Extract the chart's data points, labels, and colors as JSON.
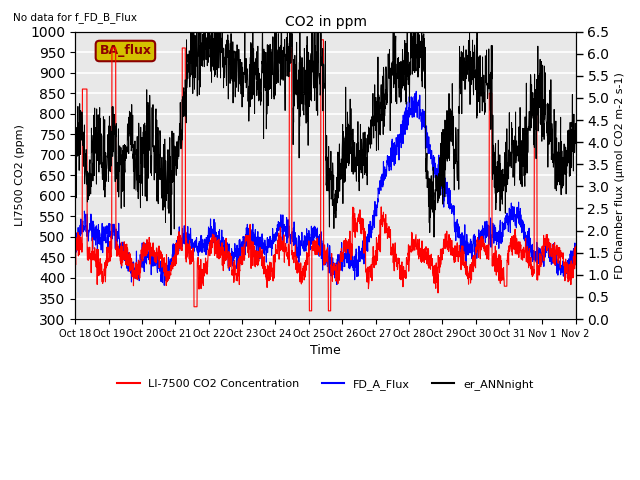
{
  "title": "CO2 in ppm",
  "title_note": "No data for f_FD_B_Flux",
  "ylabel_left": "LI7500 CO2 (ppm)",
  "ylabel_right": "FD Chamber flux (μmol CO2 m-2 s-1)",
  "xlabel": "Time",
  "ylim_left": [
    300,
    1000
  ],
  "ylim_right": [
    0.0,
    6.5
  ],
  "xtick_labels": [
    "Oct 18",
    "Oct 19",
    "Oct 20",
    "Oct 21",
    "Oct 22",
    "Oct 23",
    "Oct 24",
    "Oct 25",
    "Oct 26",
    "Oct 27",
    "Oct 28",
    "Oct 29",
    "Oct 30",
    "Oct 31",
    "Nov 1",
    "Nov 2"
  ],
  "legend_labels": [
    "LI-7500 CO2 Concentration",
    "FD_A_Flux",
    "er_ANNnight"
  ],
  "ba_flux_label": "BA_flux",
  "ba_flux_facecolor": "#d4c000",
  "ba_flux_edgecolor": "#8b0000",
  "bg_color": "#e8e8e8",
  "grid_color": "white",
  "n_points": 2000,
  "red_base": 450,
  "blue_base_umol": 1.5,
  "black_base_umol": 3.5
}
